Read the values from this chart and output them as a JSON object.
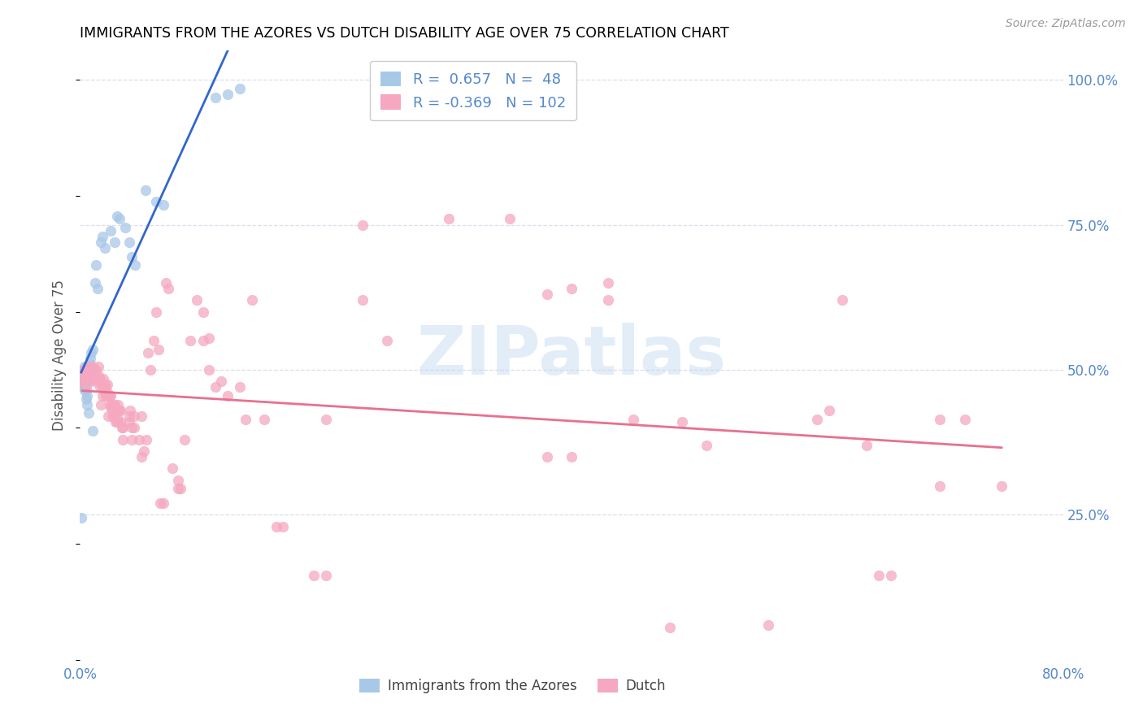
{
  "title": "IMMIGRANTS FROM THE AZORES VS DUTCH DISABILITY AGE OVER 75 CORRELATION CHART",
  "source": "Source: ZipAtlas.com",
  "ylabel": "Disability Age Over 75",
  "xlim": [
    0.0,
    0.8
  ],
  "ylim": [
    0.0,
    1.05
  ],
  "xticks": [
    0.0,
    0.1,
    0.2,
    0.3,
    0.4,
    0.5,
    0.6,
    0.7,
    0.8
  ],
  "xticklabels": [
    "0.0%",
    "",
    "",
    "",
    "",
    "",
    "",
    "",
    "80.0%"
  ],
  "ytick_positions": [
    0.25,
    0.5,
    0.75,
    1.0
  ],
  "ytick_labels": [
    "25.0%",
    "50.0%",
    "75.0%",
    "100.0%"
  ],
  "watermark": "ZIPatlas",
  "blue_color": "#a8c8e8",
  "pink_color": "#f5a8c0",
  "blue_line_color": "#3366cc",
  "pink_line_color": "#e87090",
  "tick_color": "#5588cc",
  "grid_color": "#ddddee",
  "azores_points": [
    [
      0.001,
      0.245
    ],
    [
      0.002,
      0.47
    ],
    [
      0.002,
      0.485
    ],
    [
      0.003,
      0.5
    ],
    [
      0.003,
      0.485
    ],
    [
      0.003,
      0.47
    ],
    [
      0.004,
      0.505
    ],
    [
      0.004,
      0.495
    ],
    [
      0.004,
      0.48
    ],
    [
      0.004,
      0.465
    ],
    [
      0.005,
      0.505
    ],
    [
      0.005,
      0.495
    ],
    [
      0.005,
      0.48
    ],
    [
      0.005,
      0.465
    ],
    [
      0.005,
      0.45
    ],
    [
      0.006,
      0.505
    ],
    [
      0.006,
      0.495
    ],
    [
      0.006,
      0.48
    ],
    [
      0.006,
      0.455
    ],
    [
      0.006,
      0.44
    ],
    [
      0.007,
      0.425
    ],
    [
      0.008,
      0.52
    ],
    [
      0.008,
      0.51
    ],
    [
      0.008,
      0.495
    ],
    [
      0.009,
      0.5
    ],
    [
      0.009,
      0.53
    ],
    [
      0.01,
      0.535
    ],
    [
      0.01,
      0.395
    ],
    [
      0.012,
      0.65
    ],
    [
      0.013,
      0.68
    ],
    [
      0.014,
      0.64
    ],
    [
      0.017,
      0.72
    ],
    [
      0.018,
      0.73
    ],
    [
      0.02,
      0.71
    ],
    [
      0.025,
      0.74
    ],
    [
      0.028,
      0.72
    ],
    [
      0.03,
      0.765
    ],
    [
      0.032,
      0.76
    ],
    [
      0.037,
      0.745
    ],
    [
      0.04,
      0.72
    ],
    [
      0.042,
      0.695
    ],
    [
      0.045,
      0.68
    ],
    [
      0.053,
      0.81
    ],
    [
      0.062,
      0.79
    ],
    [
      0.068,
      0.785
    ],
    [
      0.11,
      0.97
    ],
    [
      0.12,
      0.975
    ],
    [
      0.13,
      0.985
    ]
  ],
  "dutch_points": [
    [
      0.002,
      0.48
    ],
    [
      0.003,
      0.49
    ],
    [
      0.003,
      0.5
    ],
    [
      0.004,
      0.48
    ],
    [
      0.004,
      0.5
    ],
    [
      0.005,
      0.49
    ],
    [
      0.005,
      0.47
    ],
    [
      0.006,
      0.485
    ],
    [
      0.006,
      0.495
    ],
    [
      0.007,
      0.49
    ],
    [
      0.007,
      0.505
    ],
    [
      0.008,
      0.48
    ],
    [
      0.008,
      0.495
    ],
    [
      0.009,
      0.485
    ],
    [
      0.009,
      0.5
    ],
    [
      0.01,
      0.49
    ],
    [
      0.01,
      0.505
    ],
    [
      0.012,
      0.48
    ],
    [
      0.012,
      0.495
    ],
    [
      0.013,
      0.485
    ],
    [
      0.013,
      0.5
    ],
    [
      0.015,
      0.49
    ],
    [
      0.015,
      0.505
    ],
    [
      0.016,
      0.47
    ],
    [
      0.016,
      0.485
    ],
    [
      0.017,
      0.48
    ],
    [
      0.017,
      0.44
    ],
    [
      0.018,
      0.455
    ],
    [
      0.018,
      0.47
    ],
    [
      0.019,
      0.47
    ],
    [
      0.019,
      0.485
    ],
    [
      0.02,
      0.46
    ],
    [
      0.02,
      0.475
    ],
    [
      0.021,
      0.455
    ],
    [
      0.021,
      0.47
    ],
    [
      0.022,
      0.46
    ],
    [
      0.022,
      0.475
    ],
    [
      0.023,
      0.42
    ],
    [
      0.023,
      0.455
    ],
    [
      0.024,
      0.44
    ],
    [
      0.024,
      0.455
    ],
    [
      0.025,
      0.435
    ],
    [
      0.025,
      0.455
    ],
    [
      0.026,
      0.42
    ],
    [
      0.026,
      0.44
    ],
    [
      0.027,
      0.43
    ],
    [
      0.028,
      0.42
    ],
    [
      0.028,
      0.44
    ],
    [
      0.029,
      0.41
    ],
    [
      0.03,
      0.43
    ],
    [
      0.03,
      0.41
    ],
    [
      0.031,
      0.44
    ],
    [
      0.031,
      0.415
    ],
    [
      0.032,
      0.43
    ],
    [
      0.033,
      0.41
    ],
    [
      0.033,
      0.43
    ],
    [
      0.034,
      0.4
    ],
    [
      0.035,
      0.38
    ],
    [
      0.035,
      0.4
    ],
    [
      0.04,
      0.42
    ],
    [
      0.04,
      0.41
    ],
    [
      0.041,
      0.43
    ],
    [
      0.042,
      0.38
    ],
    [
      0.042,
      0.4
    ],
    [
      0.044,
      0.42
    ],
    [
      0.044,
      0.4
    ],
    [
      0.048,
      0.38
    ],
    [
      0.05,
      0.42
    ],
    [
      0.05,
      0.35
    ],
    [
      0.052,
      0.36
    ],
    [
      0.054,
      0.38
    ],
    [
      0.055,
      0.53
    ],
    [
      0.057,
      0.5
    ],
    [
      0.06,
      0.55
    ],
    [
      0.062,
      0.6
    ],
    [
      0.064,
      0.535
    ],
    [
      0.065,
      0.27
    ],
    [
      0.068,
      0.27
    ],
    [
      0.07,
      0.65
    ],
    [
      0.072,
      0.64
    ],
    [
      0.075,
      0.33
    ],
    [
      0.08,
      0.295
    ],
    [
      0.08,
      0.31
    ],
    [
      0.082,
      0.295
    ],
    [
      0.085,
      0.38
    ],
    [
      0.09,
      0.55
    ],
    [
      0.095,
      0.62
    ],
    [
      0.1,
      0.55
    ],
    [
      0.1,
      0.6
    ],
    [
      0.105,
      0.5
    ],
    [
      0.105,
      0.555
    ],
    [
      0.11,
      0.47
    ],
    [
      0.115,
      0.48
    ],
    [
      0.12,
      0.455
    ],
    [
      0.13,
      0.47
    ],
    [
      0.135,
      0.415
    ],
    [
      0.14,
      0.62
    ],
    [
      0.15,
      0.415
    ],
    [
      0.16,
      0.23
    ],
    [
      0.165,
      0.23
    ],
    [
      0.19,
      0.145
    ],
    [
      0.2,
      0.145
    ],
    [
      0.23,
      0.75
    ],
    [
      0.23,
      0.62
    ],
    [
      0.25,
      0.55
    ],
    [
      0.2,
      0.415
    ],
    [
      0.3,
      0.76
    ],
    [
      0.35,
      0.76
    ],
    [
      0.38,
      0.35
    ],
    [
      0.4,
      0.35
    ],
    [
      0.38,
      0.63
    ],
    [
      0.4,
      0.64
    ],
    [
      0.43,
      0.62
    ],
    [
      0.43,
      0.65
    ],
    [
      0.45,
      0.415
    ],
    [
      0.48,
      0.055
    ],
    [
      0.49,
      0.41
    ],
    [
      0.51,
      0.37
    ],
    [
      0.56,
      0.06
    ],
    [
      0.6,
      0.415
    ],
    [
      0.61,
      0.43
    ],
    [
      0.62,
      0.62
    ],
    [
      0.64,
      0.37
    ],
    [
      0.65,
      0.145
    ],
    [
      0.66,
      0.145
    ],
    [
      0.7,
      0.3
    ],
    [
      0.7,
      0.415
    ],
    [
      0.72,
      0.415
    ],
    [
      0.75,
      0.3
    ]
  ]
}
